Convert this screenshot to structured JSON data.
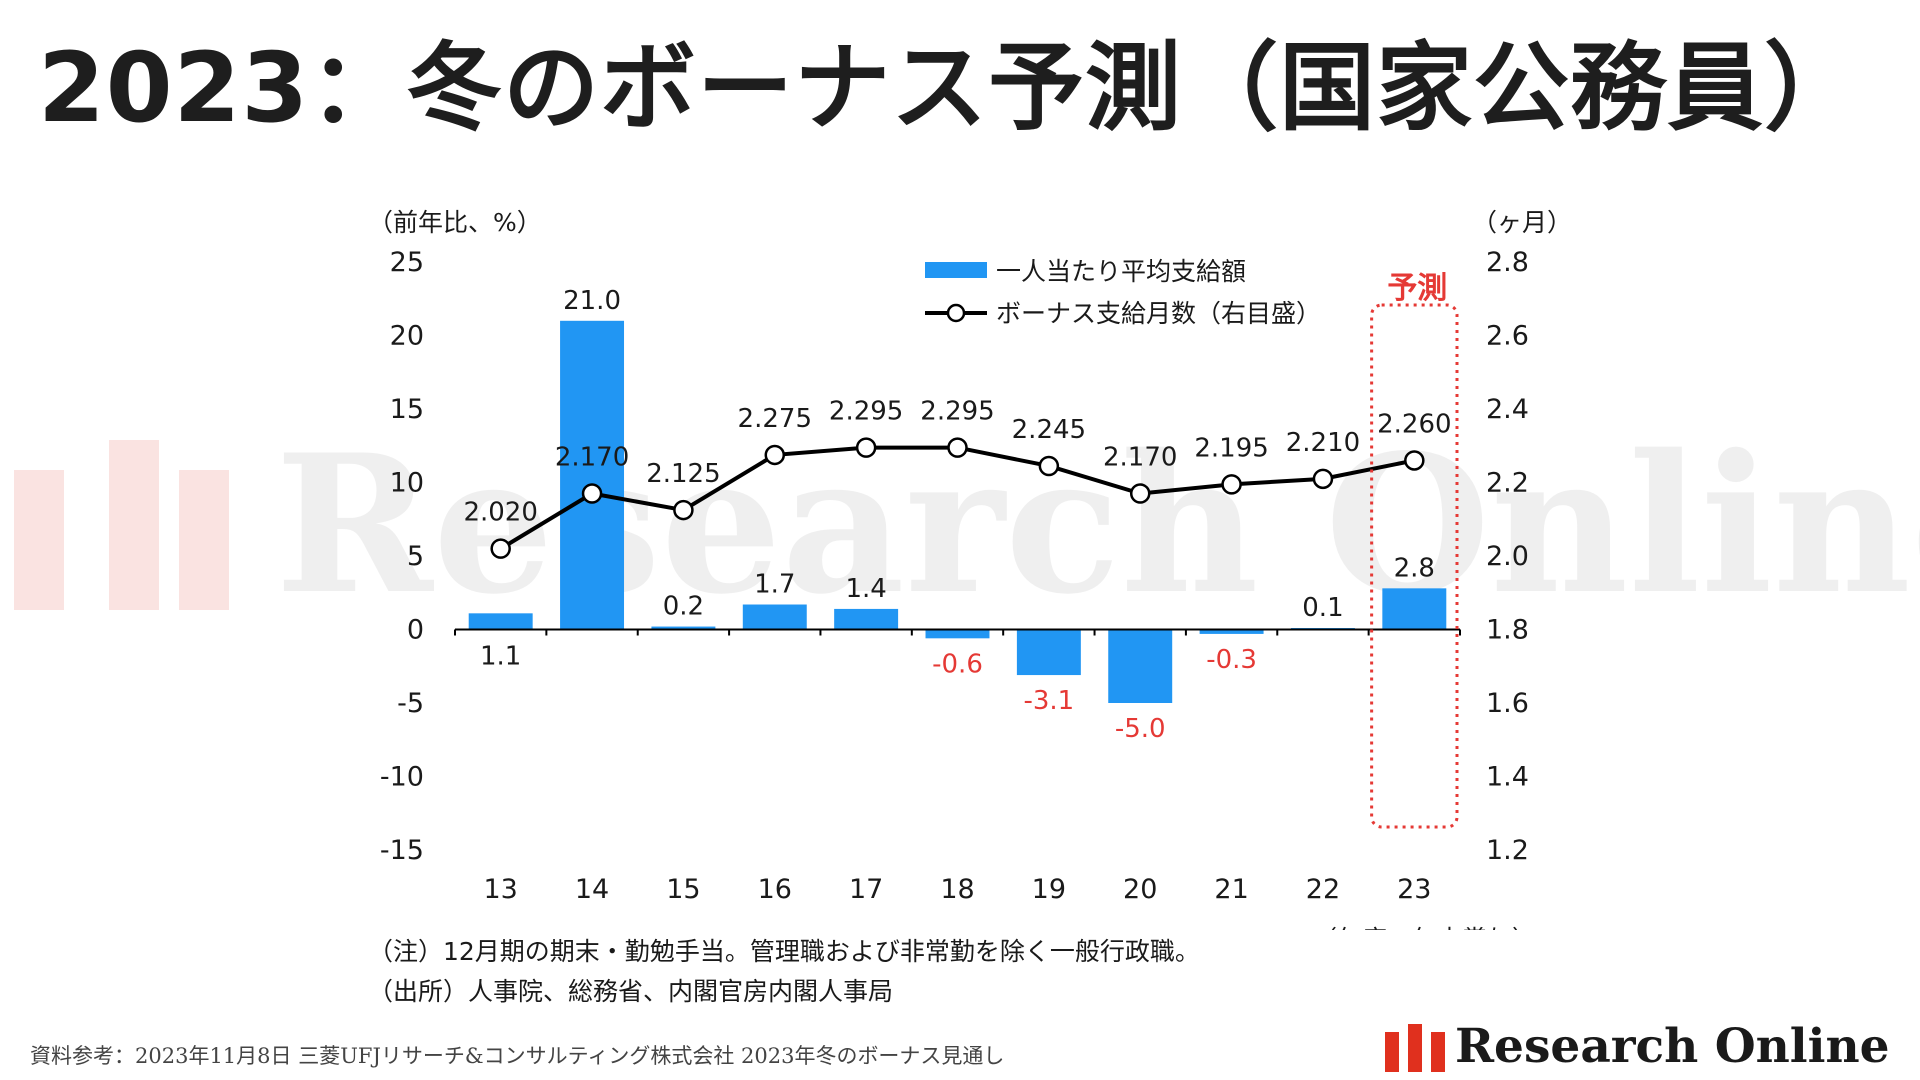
{
  "title": "2023：冬のボーナス予測（国家公務員）",
  "watermark": {
    "text": "Research Online"
  },
  "brand": {
    "name": "Research Online"
  },
  "notes": {
    "line1": "（注）12月期の期末・勤勉手当。管理職および非常勤を除く一般行政職。",
    "line2": "（出所）人事院、総務省、内閣官房内閣人事局"
  },
  "source": "資料参考：2023年11月8日 三菱UFJリサーチ&コンサルティング株式会社 2023年冬のボーナス見通し",
  "chart_data": {
    "type": "bar+line",
    "categories": [
      "13",
      "14",
      "15",
      "16",
      "17",
      "18",
      "19",
      "20",
      "21",
      "22",
      "23"
    ],
    "y_left": {
      "label": "（前年比、%）",
      "min": -15,
      "max": 25,
      "ticks": [
        25,
        20,
        15,
        10,
        5,
        0,
        -5,
        -10,
        -15
      ]
    },
    "y_right": {
      "label": "（ヶ月）",
      "min": 1.2,
      "max": 2.8,
      "ticks": [
        "2.8",
        "2.6",
        "2.4",
        "2.2",
        "2.0",
        "1.8",
        "1.6",
        "1.4",
        "1.2"
      ]
    },
    "x_label": "（年度、年末賞与）",
    "series": [
      {
        "name": "一人当たり平均支給額",
        "type": "bar",
        "axis": "left",
        "color": "#2196F3",
        "values": [
          1.1,
          21.0,
          0.2,
          1.7,
          1.4,
          -0.6,
          -3.1,
          -5.0,
          -0.3,
          0.1,
          2.8
        ],
        "labels": [
          "1.1",
          "21.0",
          "0.2",
          "1.7",
          "1.4",
          "-0.6",
          "-3.1",
          "-5.0",
          "-0.3",
          "0.1",
          "2.8"
        ]
      },
      {
        "name": "ボーナス支給月数（右目盛）",
        "type": "line",
        "axis": "right",
        "color": "#000000",
        "values": [
          2.02,
          2.17,
          2.125,
          2.275,
          2.295,
          2.295,
          2.245,
          2.17,
          2.195,
          2.21,
          2.26
        ],
        "labels": [
          "2.020",
          "2.170",
          "2.125",
          "2.275",
          "2.295",
          "2.295",
          "2.245",
          "2.170",
          "2.195",
          "2.210",
          "2.260"
        ]
      }
    ],
    "forecast": {
      "label": "予測",
      "category": "23",
      "color": "#e53935"
    },
    "negative_label_color": "#e53935"
  }
}
